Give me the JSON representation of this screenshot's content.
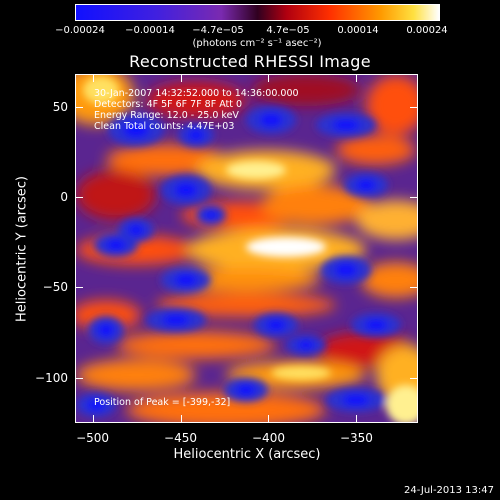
{
  "colorbar": {
    "ticks": [
      "−0.00024",
      "−0.00014",
      "−4.7e−05",
      "4.7e−05",
      "0.00014",
      "0.00024"
    ],
    "label": "(photons cm⁻² s⁻¹ asec⁻²)",
    "min": -0.00024,
    "max": 0.00024
  },
  "chart_data": {
    "type": "heatmap",
    "title": "Reconstructed RHESSI Image",
    "xlabel": "Heliocentric X (arcsec)",
    "ylabel": "Heliocentric Y (arcsec)",
    "xlim": [
      -510,
      -315
    ],
    "ylim": [
      -125,
      68
    ],
    "xticks": [
      "−500",
      "−450",
      "−400",
      "−350"
    ],
    "yticks": [
      "50",
      "0",
      "−50",
      "−100"
    ],
    "xtick_values": [
      -500,
      -450,
      -400,
      -350
    ],
    "ytick_values": [
      50,
      0,
      -50,
      -100
    ],
    "peak": {
      "x": -399,
      "y": -32
    },
    "colormap": "rainbow-blue-purple-red-orange-yellow-white"
  },
  "annotations": {
    "time_range": "30-Jan-2007 14:32:52.000 to 14:36:00.000",
    "detectors": "Detectors: 4F 5F 6F 7F 8F Att 0",
    "energy": "Energy Range: 12.0 - 25.0 keV",
    "method": "Clean     Total counts: 4.47E+03",
    "peak_position": "Position of Peak = [-399,-32]"
  },
  "footer": {
    "date": "24-Jul-2013 13:47"
  }
}
